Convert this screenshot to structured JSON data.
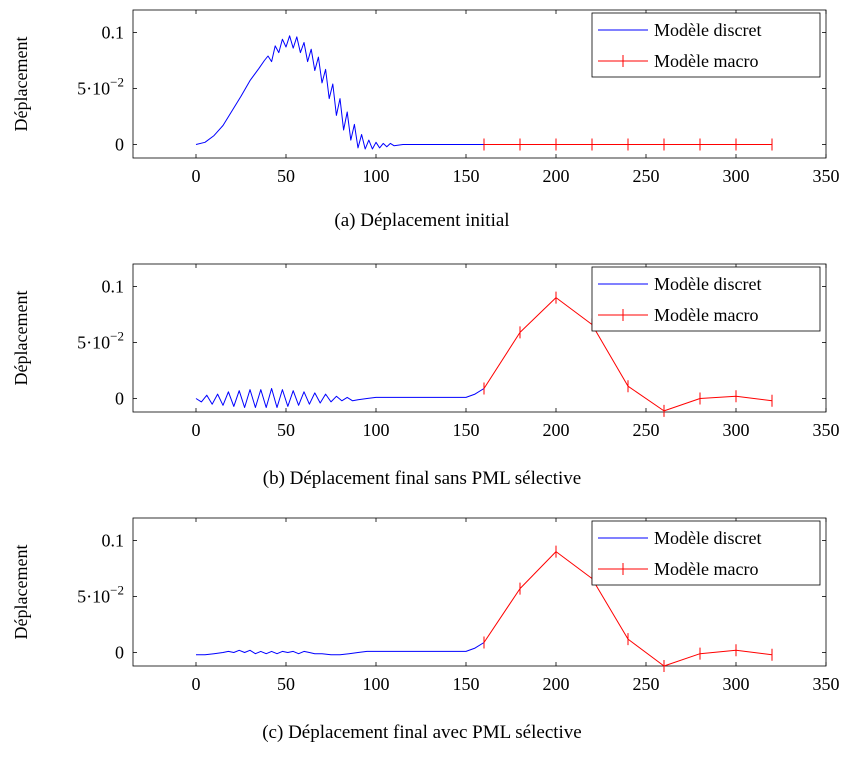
{
  "legend_labels": [
    "Modèle discret",
    "Modèle macro"
  ],
  "colors": {
    "discrete": "#0000ff",
    "macro": "#ff0000",
    "axis": "#000000"
  },
  "chart_data": [
    {
      "type": "line",
      "caption": "(a)  Déplacement initial",
      "ylabel": "Déplacement",
      "xlim": [
        -35,
        350
      ],
      "ylim": [
        -0.012,
        0.12
      ],
      "xticks": [
        0,
        50,
        100,
        150,
        200,
        250,
        300,
        350
      ],
      "yticks": [
        0,
        0.05,
        0.1
      ],
      "ytick_labels": [
        "0",
        "5·10−2",
        "0.1"
      ],
      "legend_position": "top-right",
      "series": [
        {
          "name": "Modèle discret",
          "x": [
            0,
            5,
            10,
            15,
            20,
            25,
            30,
            35,
            38,
            40,
            42,
            44,
            46,
            48,
            50,
            52,
            54,
            56,
            58,
            60,
            62,
            64,
            66,
            68,
            70,
            72,
            74,
            76,
            78,
            80,
            82,
            84,
            86,
            88,
            90,
            92,
            94,
            96,
            98,
            100,
            102,
            104,
            106,
            108,
            110,
            115,
            120,
            130,
            140,
            150,
            160
          ],
          "y": [
            0,
            0.002,
            0.008,
            0.017,
            0.03,
            0.043,
            0.057,
            0.068,
            0.075,
            0.079,
            0.074,
            0.088,
            0.082,
            0.094,
            0.087,
            0.097,
            0.086,
            0.096,
            0.082,
            0.091,
            0.074,
            0.085,
            0.066,
            0.078,
            0.055,
            0.067,
            0.041,
            0.054,
            0.026,
            0.041,
            0.013,
            0.029,
            0.004,
            0.018,
            -0.003,
            0.009,
            -0.004,
            0.004,
            -0.004,
            0.002,
            -0.003,
            0.001,
            -0.002,
            0.001,
            -0.001,
            0,
            0,
            0,
            0,
            0,
            0
          ]
        },
        {
          "name": "Modèle macro",
          "x": [
            160,
            180,
            200,
            220,
            240,
            260,
            280,
            300,
            320
          ],
          "y": [
            0,
            0,
            0,
            0,
            0,
            0,
            0,
            0,
            0
          ]
        }
      ]
    },
    {
      "type": "line",
      "caption": "(b)  Déplacement final sans PML sélective",
      "ylabel": "Déplacement",
      "xlim": [
        -35,
        350
      ],
      "ylim": [
        -0.012,
        0.12
      ],
      "xticks": [
        0,
        50,
        100,
        150,
        200,
        250,
        300,
        350
      ],
      "yticks": [
        0,
        0.05,
        0.1
      ],
      "ytick_labels": [
        "0",
        "5·10−2",
        "0.1"
      ],
      "legend_position": "top-right",
      "series": [
        {
          "name": "Modèle discret",
          "x": [
            0,
            3,
            6,
            9,
            12,
            15,
            18,
            21,
            24,
            27,
            30,
            33,
            36,
            39,
            42,
            45,
            48,
            51,
            54,
            57,
            60,
            63,
            66,
            69,
            72,
            75,
            78,
            81,
            84,
            87,
            90,
            95,
            100,
            110,
            120,
            130,
            140,
            145,
            150,
            155,
            160
          ],
          "y": [
            0,
            -0.003,
            0.003,
            -0.005,
            0.004,
            -0.006,
            0.006,
            -0.007,
            0.007,
            -0.008,
            0.008,
            -0.008,
            0.008,
            -0.008,
            0.009,
            -0.008,
            0.008,
            -0.007,
            0.007,
            -0.006,
            0.006,
            -0.005,
            0.005,
            -0.004,
            0.004,
            -0.003,
            0.002,
            -0.002,
            0.001,
            -0.002,
            -0.001,
            0,
            0.001,
            0.001,
            0.001,
            0.001,
            0.001,
            0.001,
            0.001,
            0.004,
            0.009
          ]
        },
        {
          "name": "Modèle macro",
          "x": [
            160,
            180,
            200,
            220,
            240,
            260,
            280,
            300,
            320
          ],
          "y": [
            0.009,
            0.059,
            0.09,
            0.066,
            0.011,
            -0.011,
            0,
            0.002,
            -0.002
          ]
        }
      ]
    },
    {
      "type": "line",
      "caption": "(c)  Déplacement final avec PML sélective",
      "ylabel": "Déplacement",
      "xlim": [
        -35,
        350
      ],
      "ylim": [
        -0.012,
        0.12
      ],
      "xticks": [
        0,
        50,
        100,
        150,
        200,
        250,
        300,
        350
      ],
      "yticks": [
        0,
        0.05,
        0.1
      ],
      "ytick_labels": [
        "0",
        "5·10−2",
        "0.1"
      ],
      "legend_position": "top-right",
      "series": [
        {
          "name": "Modèle discret",
          "x": [
            0,
            5,
            10,
            15,
            18,
            21,
            24,
            27,
            30,
            33,
            36,
            39,
            42,
            45,
            48,
            51,
            54,
            57,
            60,
            63,
            66,
            70,
            75,
            80,
            85,
            90,
            95,
            100,
            105,
            110,
            120,
            130,
            140,
            145,
            150,
            155,
            160
          ],
          "y": [
            -0.002,
            -0.002,
            -0.001,
            0,
            0.001,
            0,
            0.002,
            0,
            0.002,
            -0.001,
            0.001,
            -0.001,
            0.001,
            -0.001,
            0.001,
            0,
            0.001,
            -0.001,
            0.001,
            0,
            -0.001,
            -0.001,
            -0.002,
            -0.002,
            -0.001,
            0,
            0.001,
            0.001,
            0.001,
            0.001,
            0.001,
            0.001,
            0.001,
            0.001,
            0.001,
            0.004,
            0.009
          ]
        },
        {
          "name": "Modèle macro",
          "x": [
            160,
            180,
            200,
            220,
            240,
            260,
            280,
            300,
            320
          ],
          "y": [
            0.009,
            0.057,
            0.09,
            0.066,
            0.012,
            -0.012,
            -0.001,
            0.002,
            -0.002
          ]
        }
      ]
    }
  ]
}
